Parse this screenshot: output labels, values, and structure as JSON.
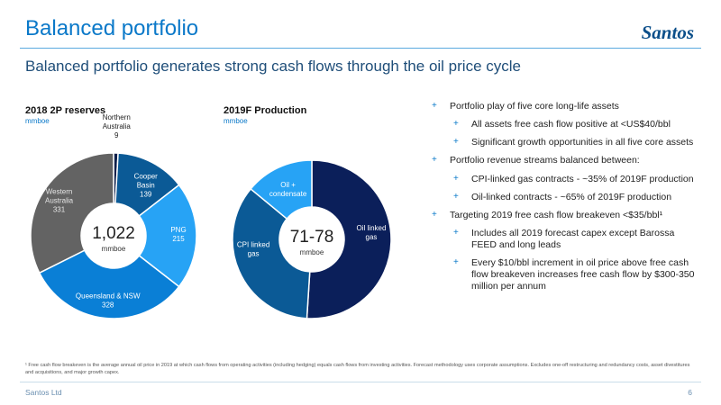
{
  "header": {
    "title": "Balanced portfolio",
    "logo_text": "Santos",
    "subtitle": "Balanced portfolio generates strong cash flows through the oil price cycle"
  },
  "chart_data": [
    {
      "type": "pie",
      "title": "2018 2P reserves",
      "unit": "mmboe",
      "center_value": "1,022",
      "center_unit": "mmboe",
      "slices": [
        {
          "name": "Northern Australia",
          "value": 9,
          "color": "#0d1f4a"
        },
        {
          "name": "Cooper Basin",
          "value": 139,
          "color": "#0b5a96"
        },
        {
          "name": "PNG",
          "value": 215,
          "color": "#27a3f5"
        },
        {
          "name": "Queensland & NSW",
          "value": 328,
          "color": "#0a7fd6"
        },
        {
          "name": "Western Australia",
          "value": 331,
          "color": "#636363"
        }
      ]
    },
    {
      "type": "pie",
      "title": "2019F Production",
      "unit": "mmboe",
      "center_value": "71-78",
      "center_unit": "mmboe",
      "slices": [
        {
          "name": "Oil linked gas",
          "value": 51,
          "color": "#0b1f5a"
        },
        {
          "name": "CPI linked gas",
          "value": 35,
          "color": "#0b5a96"
        },
        {
          "name": "Oil + condensate",
          "value": 14,
          "color": "#27a3f5"
        }
      ]
    }
  ],
  "bullets": [
    {
      "level": 1,
      "text": "Portfolio play of five core long-life assets"
    },
    {
      "level": 2,
      "text": "All assets free cash flow positive at <US$40/bbl"
    },
    {
      "level": 2,
      "text": "Significant growth opportunities in all five core assets"
    },
    {
      "level": 1,
      "text": "Portfolio revenue streams balanced between:"
    },
    {
      "level": 2,
      "text": "CPI-linked gas contracts - ~35% of 2019F production"
    },
    {
      "level": 2,
      "text": "Oil-linked contracts - ~65% of 2019F production"
    },
    {
      "level": 1,
      "text": "Targeting 2019 free cash flow breakeven <$35/bbl¹"
    },
    {
      "level": 2,
      "text": "Includes all 2019 forecast capex except Barossa FEED and long leads"
    },
    {
      "level": 2,
      "text": "Every $10/bbl increment in oil price above free cash flow breakeven increases free cash flow by $300-350 million per annum"
    }
  ],
  "footnote": "¹ Free cash flow breakeven is the average annual oil price in 2019 at which cash flows from operating activities (including hedging) equals cash flows from investing activities. Forecast methodology uses corporate assumptions. Excludes one-off restructuring and redundancy costs, asset divestitures and acquisitions, and major growth capex.",
  "footer": {
    "company": "Santos Ltd",
    "page": "6"
  }
}
